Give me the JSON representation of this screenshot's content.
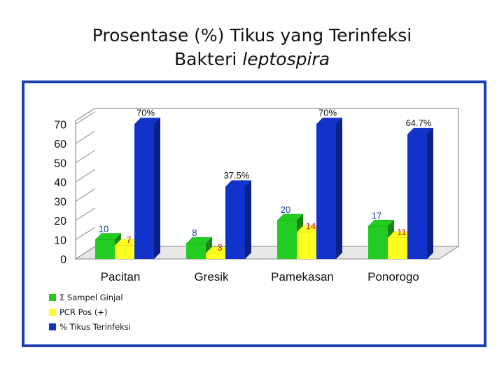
{
  "title_line1": "Prosentase (%) Tikus yang Terinfeksi",
  "title_line2_plain": "Bakteri ",
  "title_line2_italic": "leptospira",
  "colors": {
    "frame": "#1d3fb0",
    "green": "#22cc22",
    "yellow": "#ffff22",
    "blue": "#1133cc"
  },
  "chart_data": {
    "type": "bar",
    "categories": [
      "Pacitan",
      "Gresik",
      "Pamekasan",
      "Ponorogo"
    ],
    "series": [
      {
        "name": "Σ Sampel Ginjal",
        "values": [
          10,
          8,
          20,
          17
        ],
        "labels": [
          "10",
          "8",
          "20",
          "17"
        ],
        "label_color": "#1a3fa0"
      },
      {
        "name": "PCR Pos (+)",
        "values": [
          7,
          3,
          14,
          11
        ],
        "labels": [
          "7",
          "3",
          "14",
          "11"
        ],
        "label_color": "#cc1111"
      },
      {
        "name": "% Tikus Terinfeksi",
        "values": [
          70,
          37.5,
          70,
          64.7
        ],
        "labels": [
          "70%",
          "37.5%",
          "70%",
          "64.7%"
        ],
        "label_color": "#111111"
      }
    ],
    "yticks": [
      "0",
      "10",
      "20",
      "30",
      "40",
      "50",
      "60",
      "70"
    ],
    "ylim": [
      0,
      70
    ],
    "grid": false,
    "legend_position": "bottom-left",
    "xlabel": "",
    "ylabel": ""
  }
}
